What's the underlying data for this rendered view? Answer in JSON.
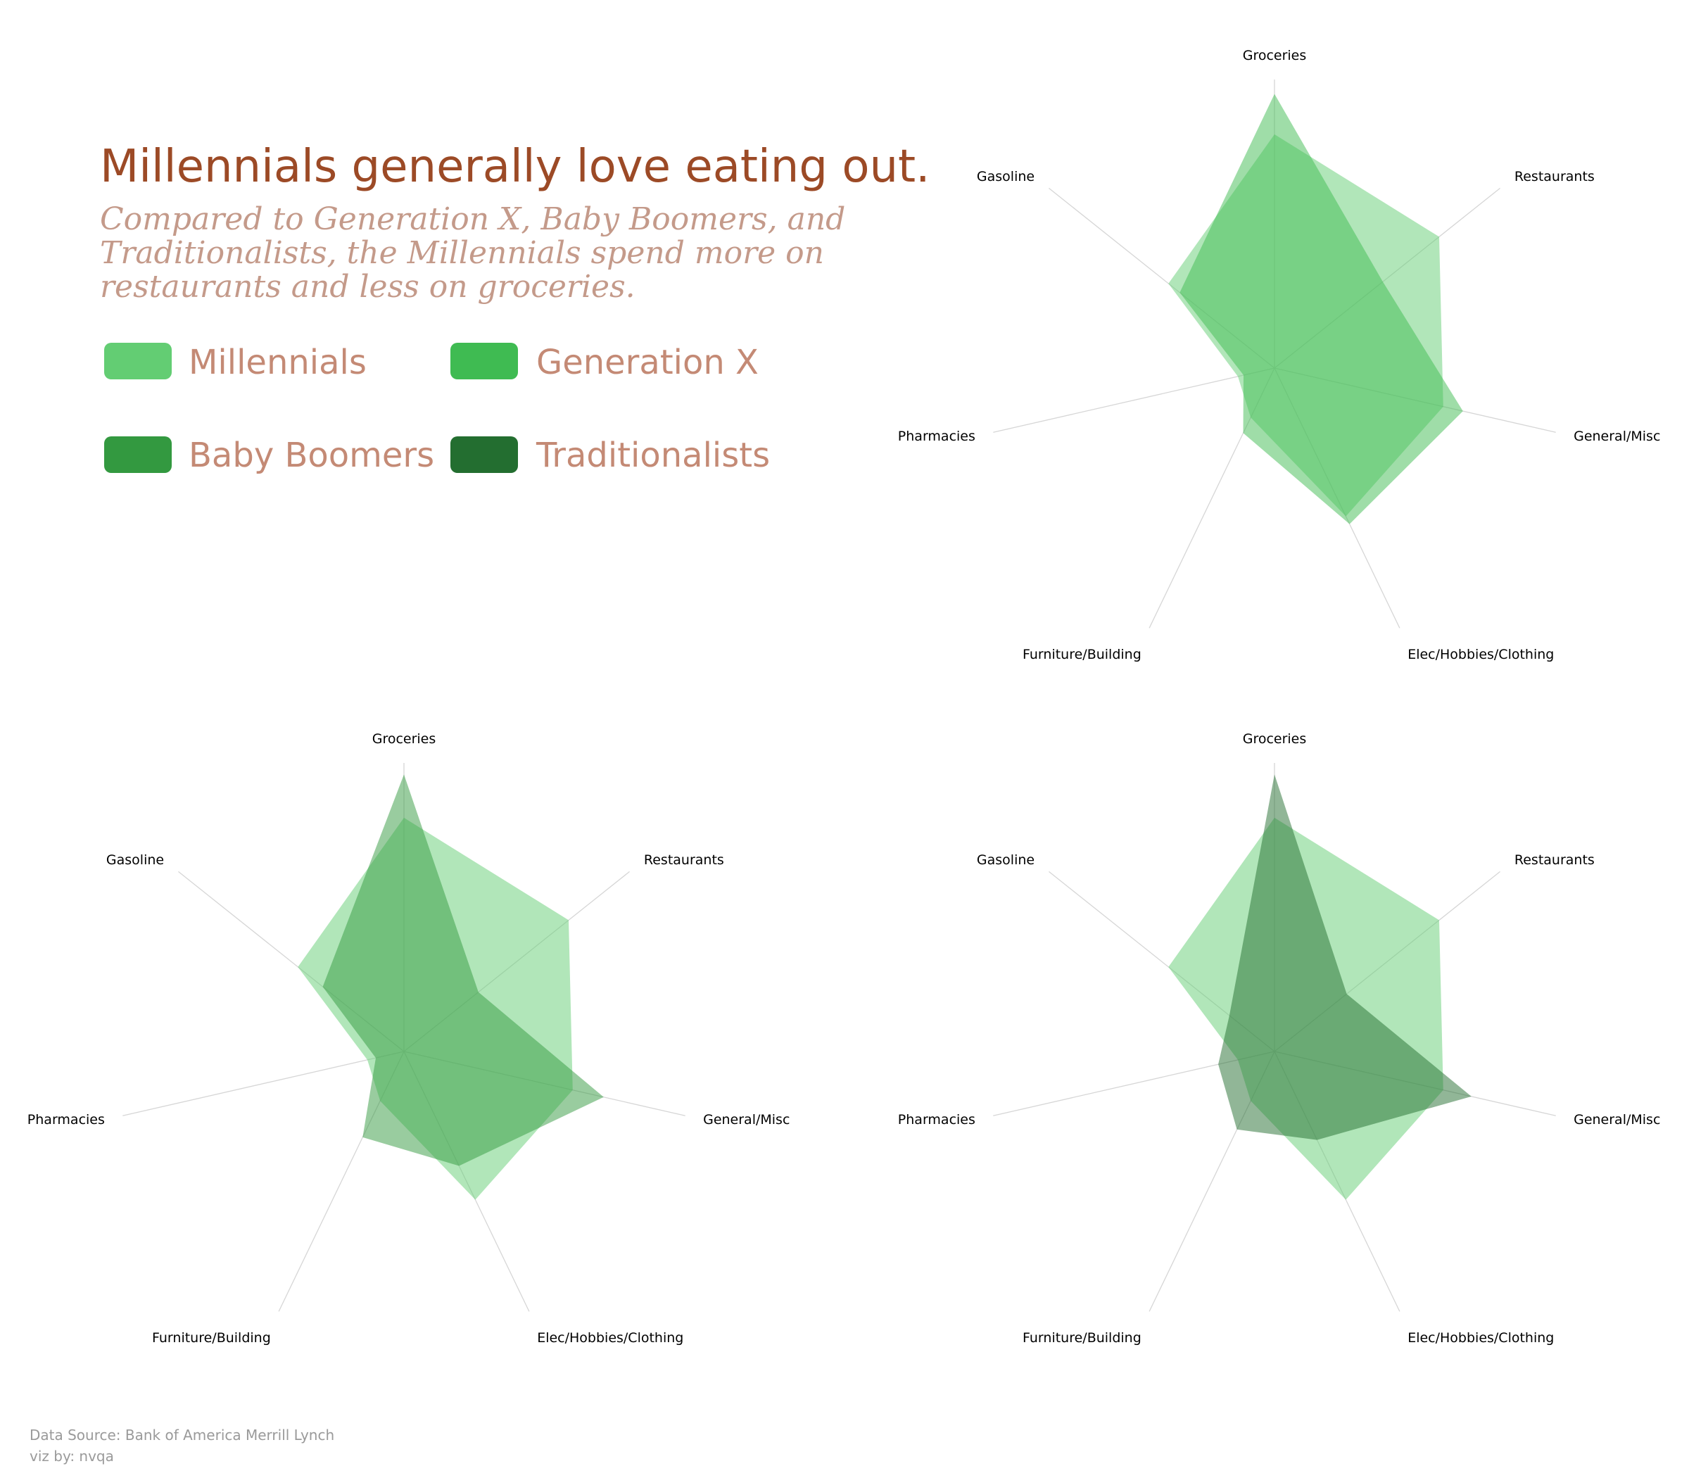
{
  "header": {
    "title": "Millennials generally love eating out.",
    "subtitle_lines": [
      "Compared to Generation X, Baby Boomers, and",
      "Traditionalists, the Millennials spend more on",
      "restaurants and less on groceries."
    ]
  },
  "legend": [
    {
      "name": "Millennials",
      "color": "#63cd73"
    },
    {
      "name": "Generation X",
      "color": "#3fbb52"
    },
    {
      "name": "Baby Boomers",
      "color": "#339940"
    },
    {
      "name": "Traditionalists",
      "color": "#236e30"
    }
  ],
  "footer": {
    "source": "Data Source: Bank of America Merrill Lynch",
    "credit": "viz by: nvqa"
  },
  "chart_data": [
    {
      "type": "radar",
      "axes": [
        "Groceries",
        "Restaurants",
        "General/Misc",
        "Elec/Hobbies/Clothing",
        "Furniture/Building",
        "Pharmacies",
        "Gasoline"
      ],
      "range": [
        0,
        1
      ],
      "grid": false,
      "series": [
        {
          "name": "Millennials",
          "values": [
            0.81,
            0.73,
            0.6,
            0.57,
            0.19,
            0.13,
            0.47
          ],
          "color": "#63cd73",
          "opacity": 0.5
        },
        {
          "name": "Generation X",
          "values": [
            0.95,
            0.48,
            0.67,
            0.6,
            0.25,
            0.11,
            0.42
          ],
          "color": "#3fbb52",
          "opacity": 0.5
        }
      ]
    },
    {
      "type": "radar",
      "axes": [
        "Groceries",
        "Restaurants",
        "General/Misc",
        "Elec/Hobbies/Clothing",
        "Furniture/Building",
        "Pharmacies",
        "Gasoline"
      ],
      "range": [
        0,
        1
      ],
      "grid": false,
      "series": [
        {
          "name": "Millennials",
          "values": [
            0.81,
            0.73,
            0.6,
            0.57,
            0.19,
            0.13,
            0.47
          ],
          "color": "#63cd73",
          "opacity": 0.5
        },
        {
          "name": "Baby Boomers",
          "values": [
            0.96,
            0.33,
            0.71,
            0.44,
            0.33,
            0.1,
            0.36
          ],
          "color": "#339940",
          "opacity": 0.5
        }
      ]
    },
    {
      "type": "radar",
      "axes": [
        "Groceries",
        "Restaurants",
        "General/Misc",
        "Elec/Hobbies/Clothing",
        "Furniture/Building",
        "Pharmacies",
        "Gasoline"
      ],
      "range": [
        0,
        1
      ],
      "grid": false,
      "series": [
        {
          "name": "Millennials",
          "values": [
            0.81,
            0.73,
            0.6,
            0.57,
            0.19,
            0.13,
            0.47
          ],
          "color": "#63cd73",
          "opacity": 0.5
        },
        {
          "name": "Traditionalists",
          "values": [
            0.96,
            0.32,
            0.7,
            0.34,
            0.3,
            0.2,
            0.2
          ],
          "color": "#236e30",
          "opacity": 0.5
        }
      ]
    }
  ]
}
